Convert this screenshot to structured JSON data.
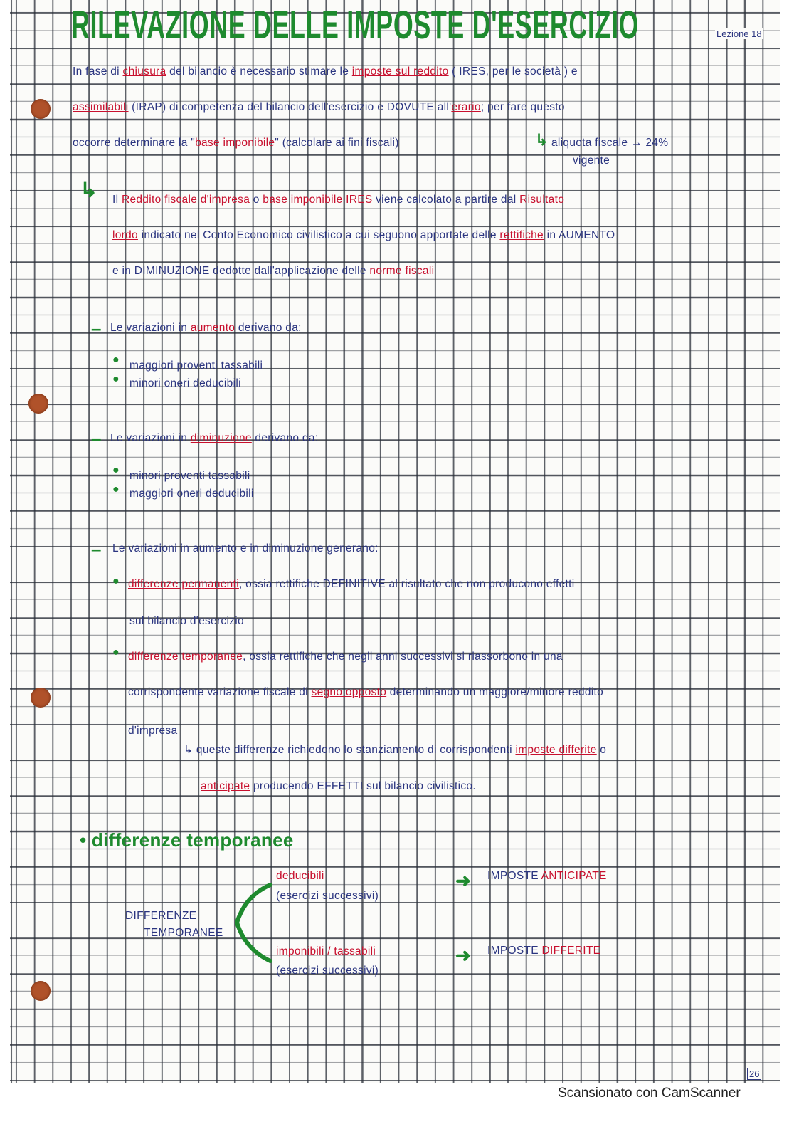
{
  "title": "RILEVAZIONE DELLE IMPOSTE D'ESERCIZIO",
  "lesson": "Lezione 18",
  "colors": {
    "ink_blue": "#2b3580",
    "ink_red": "#c8102e",
    "ink_green": "#1e8a2e",
    "holes": "#b0522a"
  },
  "lines": [
    [
      {
        "t": "In fase di ",
        "c": "blue"
      },
      {
        "t": "chiusura",
        "c": "red"
      },
      {
        "t": " del bilancio è necessario stimare le ",
        "c": "blue"
      },
      {
        "t": "imposte sul reddito",
        "c": "red"
      },
      {
        "t": " ( IRES, per le società ) e",
        "c": "blue"
      }
    ],
    [
      {
        "t": "assimilabili",
        "c": "red"
      },
      {
        "t": " (IRAP) di competenza del bilancio dell'esercizio e DOVUTE all'",
        "c": "blue"
      },
      {
        "t": "erario",
        "c": "red"
      },
      {
        "t": "; per fare questo",
        "c": "blue"
      }
    ],
    [
      {
        "t": "occorre determinare la \"",
        "c": "blue"
      },
      {
        "t": "base imponibile",
        "c": "red"
      },
      {
        "t": "\" (calcolare ai fini fiscali)",
        "c": "blue"
      }
    ],
    [
      {
        "t": "aliquota fiscale → 24%",
        "c": "blue"
      }
    ],
    [
      {
        "t": "vigente",
        "c": "blue"
      }
    ],
    [
      {
        "t": "Il ",
        "c": "blue"
      },
      {
        "t": "Reddito fiscale d'impresa",
        "c": "red"
      },
      {
        "t": " o ",
        "c": "blue"
      },
      {
        "t": "base imponibile IRES",
        "c": "red"
      },
      {
        "t": " viene calcolato a partire dal ",
        "c": "blue"
      },
      {
        "t": "Risultato",
        "c": "red"
      }
    ],
    [
      {
        "t": "lordo",
        "c": "red"
      },
      {
        "t": " indicato nel Conto Economico civilistico a cui seguono apportate delle ",
        "c": "blue"
      },
      {
        "t": "rettifiche",
        "c": "red"
      },
      {
        "t": " in AUMENTO",
        "c": "blue"
      }
    ],
    [
      {
        "t": "e in DIMINUZIONE dedotte dall'applicazione delle ",
        "c": "blue"
      },
      {
        "t": "norme fiscali",
        "c": "red"
      }
    ],
    [
      {
        "t": "Le variazioni in ",
        "c": "blue"
      },
      {
        "t": "aumento",
        "c": "red"
      },
      {
        "t": " derivano da:",
        "c": "blue"
      }
    ],
    [
      {
        "t": "maggiori proventi tassabili",
        "c": "blue"
      }
    ],
    [
      {
        "t": "minori oneri deducibili",
        "c": "blue"
      }
    ],
    [
      {
        "t": "Le variazioni in ",
        "c": "blue"
      },
      {
        "t": "diminuzione",
        "c": "red"
      },
      {
        "t": " derivano da:",
        "c": "blue"
      }
    ],
    [
      {
        "t": "minori proventi tassabili",
        "c": "blue"
      }
    ],
    [
      {
        "t": "maggiori oneri deducibili",
        "c": "blue"
      }
    ],
    [
      {
        "t": "Le variazioni in aumento e in diminuzione generano:",
        "c": "blue"
      }
    ],
    [
      {
        "t": "differenze permanenti",
        "c": "red"
      },
      {
        "t": ", ossia rettifiche DEFINITIVE al risultato che non producono effetti",
        "c": "blue"
      }
    ],
    [
      {
        "t": "sul bilancio d'esercizio",
        "c": "blue"
      }
    ],
    [
      {
        "t": "differenze temporanee",
        "c": "red"
      },
      {
        "t": ", ossia rettifiche che negli anni successivi si riassorbono in una",
        "c": "blue"
      }
    ],
    [
      {
        "t": "corrispondente variazione fiscale di ",
        "c": "blue"
      },
      {
        "t": "segno opposto",
        "c": "red"
      },
      {
        "t": " determinando un maggiore/minore reddito",
        "c": "blue"
      }
    ],
    [
      {
        "t": "d'impresa",
        "c": "blue"
      }
    ],
    [
      {
        "t": "↳ queste differenze richiedono lo stanziamento di corrispondenti ",
        "c": "blue"
      },
      {
        "t": "imposte differite",
        "c": "red"
      },
      {
        "t": " o",
        "c": "blue"
      }
    ],
    [
      {
        "t": "anticipate",
        "c": "red"
      },
      {
        "t": " producendo EFFETTI sul bilancio civilistico.",
        "c": "blue"
      }
    ],
    [
      {
        "t": "• differenze temporanee",
        "c": "green"
      }
    ],
    [
      {
        "t": "deducibili",
        "c": "redplain"
      }
    ],
    [
      {
        "t": "(esercizi successivi)",
        "c": "blue"
      }
    ],
    [
      {
        "t": "DIFFERENZE",
        "c": "blue"
      }
    ],
    [
      {
        "t": "TEMPORANEE",
        "c": "blue"
      }
    ],
    [
      {
        "t": "imponibili / tassabili",
        "c": "redplain"
      }
    ],
    [
      {
        "t": "(esercizi successivi)",
        "c": "blue"
      }
    ],
    [
      {
        "t": "IMPOSTE  ",
        "c": "blue"
      },
      {
        "t": "ANTICIPATE",
        "c": "redplain"
      }
    ],
    [
      {
        "t": "IMPOSTE  ",
        "c": "blue"
      },
      {
        "t": "DIFFERITE",
        "c": "redplain"
      }
    ]
  ],
  "page_number": "26",
  "footer": "Scansionato con CamScanner"
}
